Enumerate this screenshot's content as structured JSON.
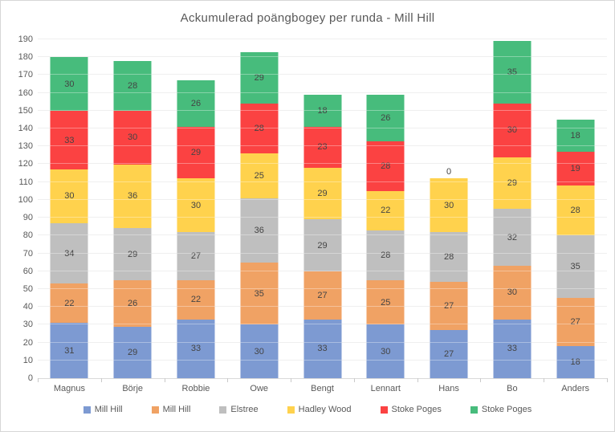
{
  "window": {
    "background": "#FFFFFF",
    "border_color": "#D7D7D7"
  },
  "chart_data": {
    "type": "bar",
    "stacked": true,
    "title": "Ackumulerad poängbogey per runda - Mill Hill",
    "categories": [
      "Magnus",
      "Börje",
      "Robbie",
      "Owe",
      "Bengt",
      "Lennart",
      "Hans",
      "Bo",
      "Anders"
    ],
    "series": [
      {
        "name": "Mill Hill",
        "color": "#7D9AD2",
        "values": [
          31,
          29,
          33,
          30,
          33,
          30,
          27,
          33,
          18
        ]
      },
      {
        "name": "Mill Hill",
        "color": "#F0A264",
        "values": [
          22,
          26,
          22,
          35,
          27,
          25,
          27,
          30,
          27
        ]
      },
      {
        "name": "Elstree",
        "color": "#BFBFBF",
        "values": [
          34,
          29,
          27,
          36,
          29,
          28,
          28,
          32,
          35
        ]
      },
      {
        "name": "Hadley Wood",
        "color": "#FFD24D",
        "values": [
          30,
          36,
          30,
          25,
          29,
          22,
          30,
          29,
          28
        ]
      },
      {
        "name": "Stoke Poges",
        "color": "#FB4242",
        "values": [
          33,
          30,
          29,
          28,
          23,
          28,
          0,
          30,
          19
        ]
      },
      {
        "name": "Stoke Poges",
        "color": "#47BC7C",
        "values": [
          30,
          28,
          26,
          29,
          18,
          26,
          null,
          35,
          18
        ]
      }
    ],
    "ylim": [
      0,
      190
    ],
    "ytick_step": 10,
    "grid": true,
    "legend_position": "bottom",
    "data_labels": "inside-center",
    "text_color": "#595959",
    "label_color": "#444444",
    "gridline_color": "#E7E7E7"
  }
}
